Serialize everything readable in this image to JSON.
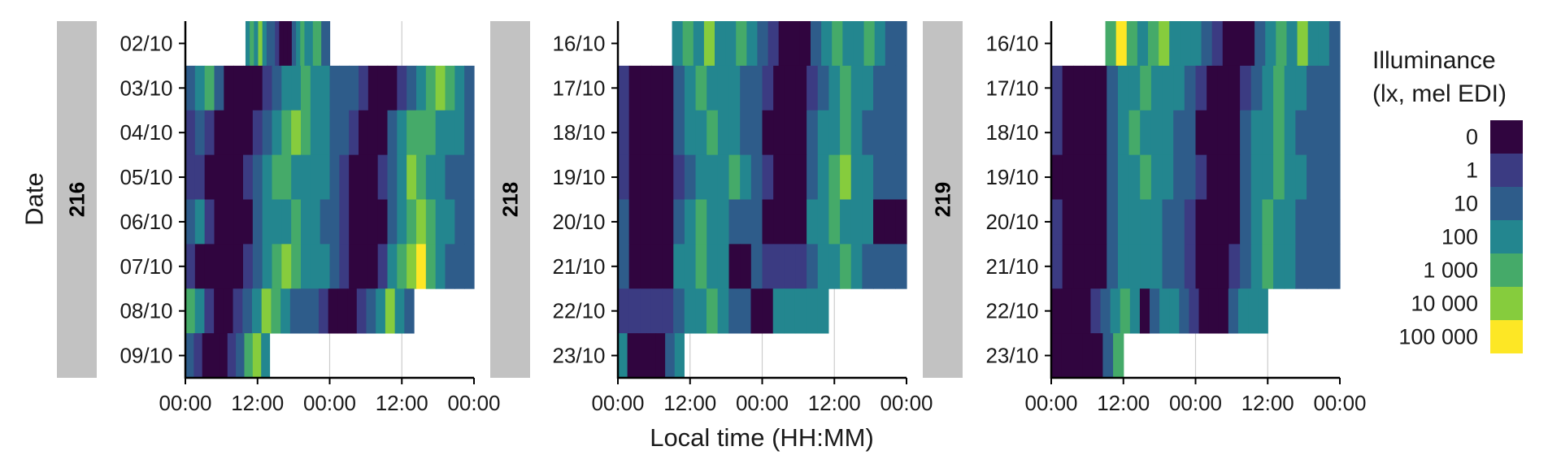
{
  "chart_data": {
    "type": "heatmap",
    "xlabel": "Local time (HH:MM)",
    "ylabel": "Date",
    "x_ticks": [
      "00:00",
      "12:00",
      "00:00",
      "12:00",
      "00:00"
    ],
    "x_range_hours": [
      0,
      48
    ],
    "legend": {
      "title_lines": [
        "Illuminance",
        "(lx, mel EDI)"
      ],
      "levels": [
        "0",
        "1",
        "10",
        "100",
        "1 000",
        "10 000",
        "100 000"
      ],
      "colors": [
        "#30053f",
        "#3b3b82",
        "#2e5c8a",
        "#23868f",
        "#45aa69",
        "#86cc3d",
        "#fde725"
      ],
      "placement": "right"
    },
    "panels": [
      {
        "strip_label": "216",
        "dates": [
          "02/10",
          "03/10",
          "04/10",
          "05/10",
          "06/10",
          "07/10",
          "08/10",
          "09/10"
        ],
        "rows": [
          [
            10,
            24,
            3,
            4,
            3,
            5,
            3,
            2,
            2,
            1,
            0,
            0,
            0,
            2,
            3,
            4,
            3,
            3,
            4,
            4,
            2,
            2
          ],
          [
            0,
            48,
            2,
            3,
            4,
            2,
            0,
            0,
            0,
            0,
            1,
            2,
            3,
            3,
            4,
            3,
            3,
            2,
            2,
            2,
            1,
            0,
            0,
            0,
            1,
            2,
            3,
            4,
            5,
            4,
            3,
            2
          ],
          [
            0,
            48,
            1,
            2,
            1,
            0,
            0,
            0,
            0,
            1,
            2,
            3,
            4,
            5,
            4,
            3,
            3,
            2,
            2,
            1,
            0,
            0,
            0,
            2,
            3,
            4,
            4,
            4,
            3,
            3,
            3,
            2
          ],
          [
            0,
            48,
            1,
            1,
            0,
            0,
            0,
            0,
            1,
            2,
            3,
            4,
            4,
            3,
            3,
            3,
            3,
            2,
            1,
            0,
            0,
            0,
            1,
            2,
            3,
            5,
            4,
            3,
            3,
            2,
            2,
            2
          ],
          [
            0,
            48,
            2,
            3,
            1,
            0,
            0,
            0,
            0,
            2,
            3,
            3,
            3,
            4,
            3,
            3,
            2,
            2,
            1,
            0,
            0,
            0,
            0,
            2,
            3,
            4,
            5,
            4,
            3,
            3,
            2,
            2
          ],
          [
            0,
            48,
            1,
            0,
            0,
            0,
            0,
            0,
            1,
            2,
            3,
            4,
            5,
            4,
            3,
            3,
            3,
            2,
            1,
            0,
            0,
            0,
            1,
            3,
            4,
            5,
            6,
            4,
            3,
            2,
            2,
            2
          ],
          [
            0,
            38,
            4,
            3,
            1,
            0,
            0,
            1,
            2,
            3,
            5,
            4,
            3,
            2,
            2,
            2,
            1,
            0,
            0,
            0,
            1,
            2,
            3,
            5,
            3,
            2
          ],
          [
            0,
            14,
            2,
            1,
            0,
            0,
            0,
            1,
            2,
            4,
            5,
            3
          ]
        ]
      },
      {
        "strip_label": "218",
        "dates": [
          "16/10",
          "17/10",
          "18/10",
          "19/10",
          "20/10",
          "21/10",
          "22/10",
          "23/10"
        ],
        "rows": [
          [
            9,
            48,
            3,
            4,
            3,
            5,
            3,
            3,
            4,
            3,
            2,
            1,
            0,
            0,
            0,
            2,
            3,
            4,
            3,
            3,
            4,
            3,
            2,
            2
          ],
          [
            0,
            48,
            1,
            0,
            0,
            0,
            0,
            2,
            3,
            4,
            3,
            3,
            3,
            2,
            2,
            1,
            0,
            0,
            0,
            1,
            2,
            3,
            4,
            3,
            3,
            2,
            2,
            2
          ],
          [
            0,
            48,
            1,
            0,
            0,
            0,
            0,
            2,
            3,
            3,
            4,
            3,
            3,
            2,
            2,
            0,
            0,
            0,
            0,
            2,
            3,
            3,
            4,
            3,
            2,
            2,
            2,
            2
          ],
          [
            0,
            48,
            1,
            0,
            0,
            0,
            0,
            1,
            2,
            3,
            3,
            3,
            4,
            3,
            2,
            1,
            0,
            0,
            0,
            2,
            3,
            4,
            5,
            3,
            3,
            2,
            2,
            2
          ],
          [
            0,
            48,
            2,
            0,
            0,
            0,
            0,
            2,
            3,
            4,
            3,
            3,
            2,
            2,
            2,
            0,
            0,
            0,
            0,
            3,
            3,
            4,
            3,
            3,
            3,
            0,
            0,
            0
          ],
          [
            0,
            48,
            2,
            0,
            0,
            0,
            0,
            3,
            3,
            4,
            3,
            3,
            0,
            0,
            2,
            1,
            1,
            1,
            1,
            2,
            3,
            3,
            4,
            3,
            2,
            2,
            2,
            2
          ],
          [
            0,
            35,
            1,
            1,
            1,
            1,
            1,
            2,
            3,
            3,
            4,
            3,
            2,
            2,
            0,
            0,
            3,
            3,
            3,
            3,
            3
          ],
          [
            0,
            11,
            3,
            0,
            0,
            0,
            0,
            2,
            3
          ]
        ]
      },
      {
        "strip_label": "219",
        "dates": [
          "16/10",
          "17/10",
          "18/10",
          "19/10",
          "20/10",
          "21/10",
          "22/10",
          "23/10"
        ],
        "rows": [
          [
            9,
            48,
            4,
            6,
            4,
            3,
            4,
            5,
            3,
            3,
            3,
            2,
            1,
            0,
            0,
            0,
            2,
            3,
            4,
            3,
            5,
            3,
            3,
            2
          ],
          [
            0,
            48,
            1,
            0,
            0,
            0,
            0,
            2,
            3,
            3,
            4,
            3,
            3,
            3,
            2,
            1,
            0,
            0,
            0,
            1,
            2,
            3,
            4,
            3,
            3,
            2,
            2,
            2
          ],
          [
            0,
            48,
            1,
            0,
            0,
            0,
            0,
            2,
            3,
            4,
            3,
            3,
            3,
            2,
            2,
            0,
            0,
            0,
            0,
            2,
            3,
            3,
            4,
            3,
            2,
            2,
            2,
            2
          ],
          [
            0,
            48,
            0,
            0,
            0,
            0,
            0,
            2,
            3,
            3,
            4,
            3,
            3,
            2,
            2,
            1,
            0,
            0,
            0,
            2,
            3,
            3,
            4,
            3,
            3,
            2,
            2,
            2
          ],
          [
            0,
            48,
            1,
            0,
            0,
            0,
            0,
            2,
            3,
            3,
            3,
            3,
            2,
            2,
            1,
            0,
            0,
            0,
            0,
            2,
            3,
            4,
            3,
            3,
            2,
            2,
            2,
            2
          ],
          [
            0,
            48,
            1,
            0,
            0,
            0,
            0,
            2,
            3,
            3,
            3,
            3,
            2,
            2,
            1,
            0,
            0,
            0,
            1,
            2,
            3,
            4,
            3,
            3,
            2,
            2,
            2,
            2
          ],
          [
            0,
            36,
            0,
            0,
            0,
            0,
            1,
            2,
            3,
            4,
            3,
            0,
            2,
            3,
            3,
            2,
            1,
            0,
            0,
            0,
            2,
            3,
            3,
            3
          ],
          [
            0,
            12,
            0,
            0,
            0,
            0,
            0,
            2,
            4
          ]
        ]
      }
    ]
  }
}
